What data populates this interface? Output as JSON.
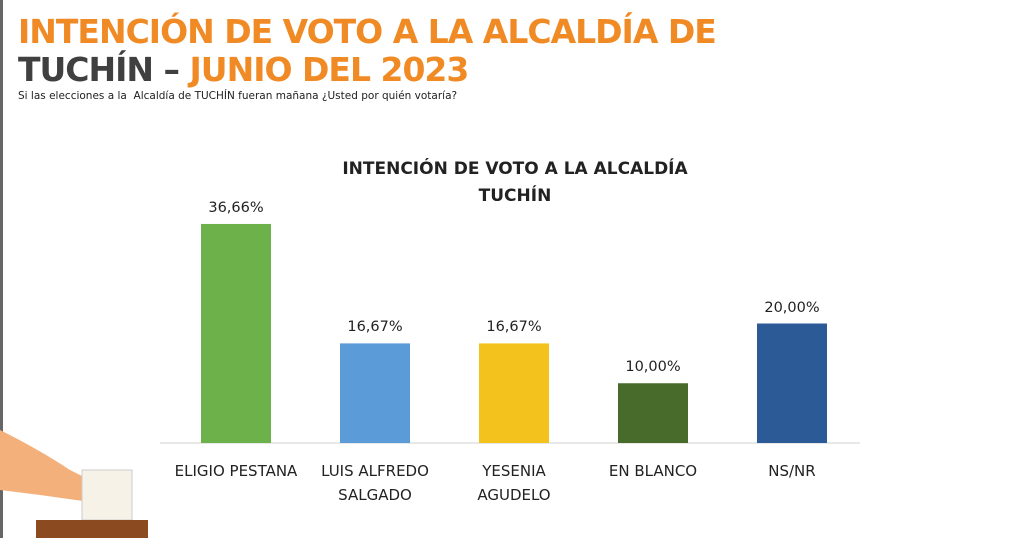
{
  "header": {
    "title_line1": "INTENCIÓN DE VOTO A LA ALCALDÍA DE",
    "title_line2_dark": "TUCHÍN –",
    "title_line2_orange": "JUNIO DEL 2023",
    "question": "Si las elecciones a la  Alcaldía de TUCHÍN fueran mañana ¿Usted por quién votaría?"
  },
  "chart_data": {
    "type": "bar",
    "title": "INTENCIÓN DE VOTO A LA ALCALDÍA\nTUCHÍN",
    "categories": [
      "ELIGIO PESTANA",
      "LUIS ALFREDO\nSALGADO",
      "YESENIA\nAGUDELO",
      "EN BLANCO",
      "NS/NR"
    ],
    "values": [
      36.66,
      16.67,
      16.67,
      10,
      20
    ],
    "value_labels": [
      "36,66%",
      "16,67%",
      "16,67%",
      "10,00%",
      "20,00%"
    ],
    "colors": [
      "#6cb14a",
      "#5b9bd8",
      "#f3c21c",
      "#486a2a",
      "#2b5a96"
    ]
  }
}
